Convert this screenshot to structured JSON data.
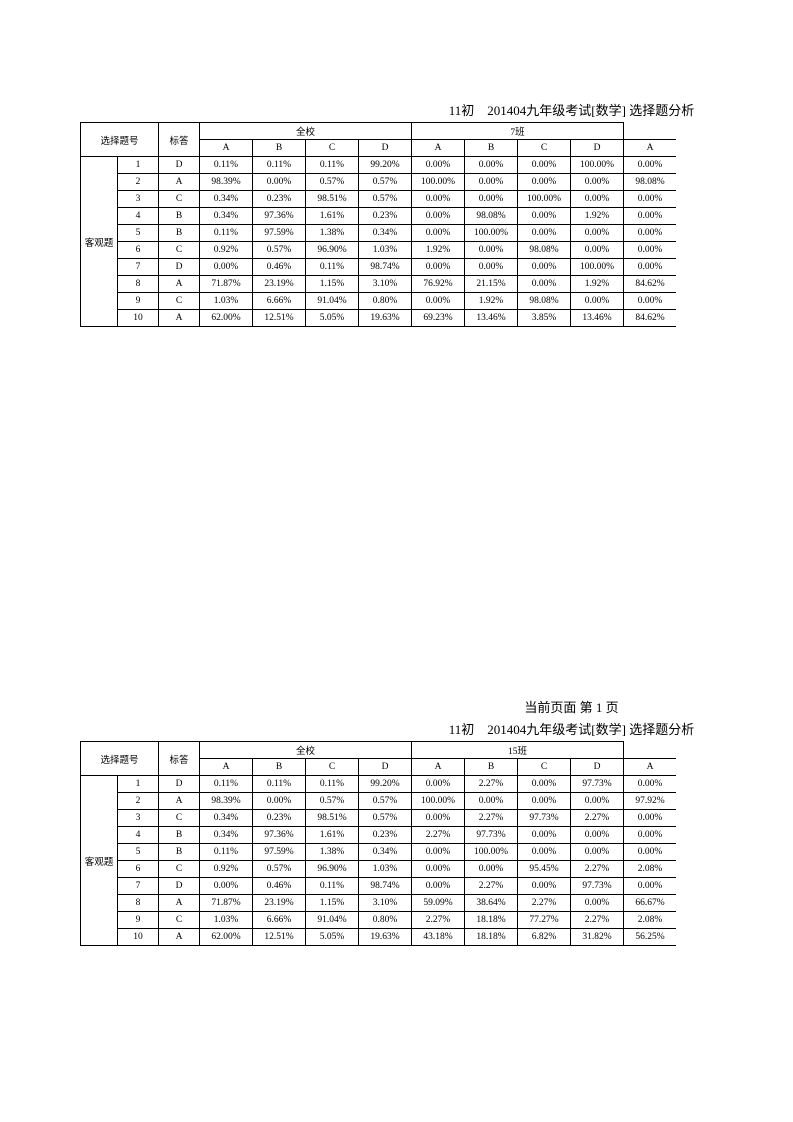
{
  "title1": "11初　201404九年级考试[数学] 选择题分析",
  "pageIndicator": "当前页面 第 1 页",
  "title2": "11初　201404九年级考试[数学] 选择题分析",
  "labels": {
    "questionNumber": "选择题号",
    "correctAnswer": "标答",
    "wholeSchool": "全校",
    "category": "客观题",
    "optA": "A",
    "optB": "B",
    "optC": "C",
    "optD": "D"
  },
  "table1": {
    "className": "7班",
    "rows": [
      {
        "q": "1",
        "ans": "D",
        "school": [
          "0.11%",
          "0.11%",
          "0.11%",
          "99.20%"
        ],
        "class": [
          "0.00%",
          "0.00%",
          "0.00%",
          "100.00%"
        ],
        "extra": "0.00%"
      },
      {
        "q": "2",
        "ans": "A",
        "school": [
          "98.39%",
          "0.00%",
          "0.57%",
          "0.57%"
        ],
        "class": [
          "100.00%",
          "0.00%",
          "0.00%",
          "0.00%"
        ],
        "extra": "98.08%"
      },
      {
        "q": "3",
        "ans": "C",
        "school": [
          "0.34%",
          "0.23%",
          "98.51%",
          "0.57%"
        ],
        "class": [
          "0.00%",
          "0.00%",
          "100.00%",
          "0.00%"
        ],
        "extra": "0.00%"
      },
      {
        "q": "4",
        "ans": "B",
        "school": [
          "0.34%",
          "97.36%",
          "1.61%",
          "0.23%"
        ],
        "class": [
          "0.00%",
          "98.08%",
          "0.00%",
          "1.92%"
        ],
        "extra": "0.00%"
      },
      {
        "q": "5",
        "ans": "B",
        "school": [
          "0.11%",
          "97.59%",
          "1.38%",
          "0.34%"
        ],
        "class": [
          "0.00%",
          "100.00%",
          "0.00%",
          "0.00%"
        ],
        "extra": "0.00%"
      },
      {
        "q": "6",
        "ans": "C",
        "school": [
          "0.92%",
          "0.57%",
          "96.90%",
          "1.03%"
        ],
        "class": [
          "1.92%",
          "0.00%",
          "98.08%",
          "0.00%"
        ],
        "extra": "0.00%"
      },
      {
        "q": "7",
        "ans": "D",
        "school": [
          "0.00%",
          "0.46%",
          "0.11%",
          "98.74%"
        ],
        "class": [
          "0.00%",
          "0.00%",
          "0.00%",
          "100.00%"
        ],
        "extra": "0.00%"
      },
      {
        "q": "8",
        "ans": "A",
        "school": [
          "71.87%",
          "23.19%",
          "1.15%",
          "3.10%"
        ],
        "class": [
          "76.92%",
          "21.15%",
          "0.00%",
          "1.92%"
        ],
        "extra": "84.62%"
      },
      {
        "q": "9",
        "ans": "C",
        "school": [
          "1.03%",
          "6.66%",
          "91.04%",
          "0.80%"
        ],
        "class": [
          "0.00%",
          "1.92%",
          "98.08%",
          "0.00%"
        ],
        "extra": "0.00%"
      },
      {
        "q": "10",
        "ans": "A",
        "school": [
          "62.00%",
          "12.51%",
          "5.05%",
          "19.63%"
        ],
        "class": [
          "69.23%",
          "13.46%",
          "3.85%",
          "13.46%"
        ],
        "extra": "84.62%"
      }
    ]
  },
  "table2": {
    "className": "15班",
    "rows": [
      {
        "q": "1",
        "ans": "D",
        "school": [
          "0.11%",
          "0.11%",
          "0.11%",
          "99.20%"
        ],
        "class": [
          "0.00%",
          "2.27%",
          "0.00%",
          "97.73%"
        ],
        "extra": "0.00%"
      },
      {
        "q": "2",
        "ans": "A",
        "school": [
          "98.39%",
          "0.00%",
          "0.57%",
          "0.57%"
        ],
        "class": [
          "100.00%",
          "0.00%",
          "0.00%",
          "0.00%"
        ],
        "extra": "97.92%"
      },
      {
        "q": "3",
        "ans": "C",
        "school": [
          "0.34%",
          "0.23%",
          "98.51%",
          "0.57%"
        ],
        "class": [
          "0.00%",
          "2.27%",
          "97.73%",
          "2.27%"
        ],
        "extra": "0.00%"
      },
      {
        "q": "4",
        "ans": "B",
        "school": [
          "0.34%",
          "97.36%",
          "1.61%",
          "0.23%"
        ],
        "class": [
          "2.27%",
          "97.73%",
          "0.00%",
          "0.00%"
        ],
        "extra": "0.00%"
      },
      {
        "q": "5",
        "ans": "B",
        "school": [
          "0.11%",
          "97.59%",
          "1.38%",
          "0.34%"
        ],
        "class": [
          "0.00%",
          "100.00%",
          "0.00%",
          "0.00%"
        ],
        "extra": "0.00%"
      },
      {
        "q": "6",
        "ans": "C",
        "school": [
          "0.92%",
          "0.57%",
          "96.90%",
          "1.03%"
        ],
        "class": [
          "0.00%",
          "0.00%",
          "95.45%",
          "2.27%"
        ],
        "extra": "2.08%"
      },
      {
        "q": "7",
        "ans": "D",
        "school": [
          "0.00%",
          "0.46%",
          "0.11%",
          "98.74%"
        ],
        "class": [
          "0.00%",
          "2.27%",
          "0.00%",
          "97.73%"
        ],
        "extra": "0.00%"
      },
      {
        "q": "8",
        "ans": "A",
        "school": [
          "71.87%",
          "23.19%",
          "1.15%",
          "3.10%"
        ],
        "class": [
          "59.09%",
          "38.64%",
          "2.27%",
          "0.00%"
        ],
        "extra": "66.67%"
      },
      {
        "q": "9",
        "ans": "C",
        "school": [
          "1.03%",
          "6.66%",
          "91.04%",
          "0.80%"
        ],
        "class": [
          "2.27%",
          "18.18%",
          "77.27%",
          "2.27%"
        ],
        "extra": "2.08%"
      },
      {
        "q": "10",
        "ans": "A",
        "school": [
          "62.00%",
          "12.51%",
          "5.05%",
          "19.63%"
        ],
        "class": [
          "43.18%",
          "18.18%",
          "6.82%",
          "31.82%"
        ],
        "extra": "56.25%"
      }
    ]
  }
}
